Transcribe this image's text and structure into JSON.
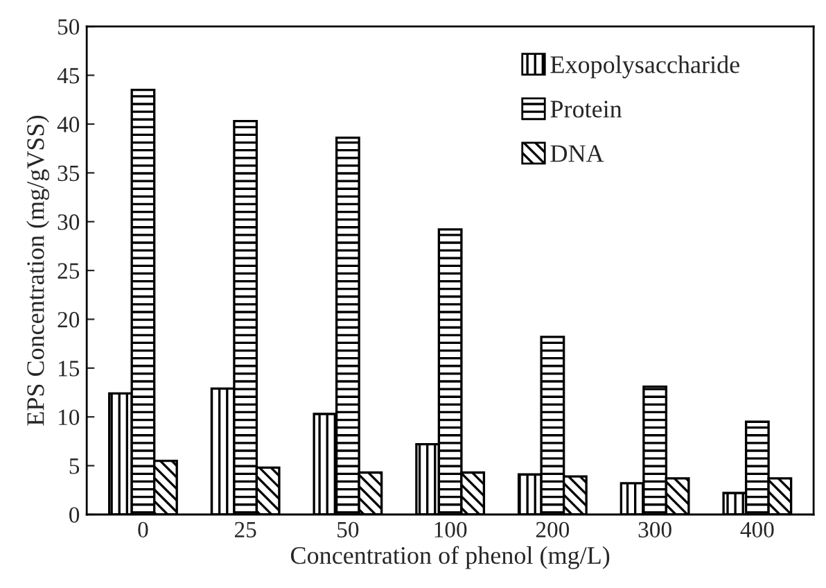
{
  "chart_data": {
    "type": "bar",
    "xlabel": "Concentration of phenol (mg/L)",
    "ylabel": "EPS Concentration (mg/gVSS)",
    "categories": [
      "0",
      "25",
      "50",
      "100",
      "200",
      "300",
      "400"
    ],
    "series": [
      {
        "name": "Exopolysaccharide",
        "color": "#000000",
        "values": [
          12.4,
          12.9,
          10.3,
          7.2,
          4.1,
          3.2,
          2.2
        ]
      },
      {
        "name": "Protein",
        "color": "#000000",
        "values": [
          43.5,
          40.3,
          38.6,
          29.2,
          18.2,
          13.1,
          9.5
        ]
      },
      {
        "name": "DNA",
        "color": "#000000",
        "values": [
          5.5,
          4.8,
          4.3,
          4.3,
          3.9,
          3.7,
          3.7
        ]
      }
    ],
    "ylim": [
      0,
      50
    ],
    "yticks": [
      0,
      5,
      10,
      15,
      20,
      25,
      30,
      35,
      40,
      45,
      50
    ],
    "grid": false,
    "legend": "top right"
  }
}
